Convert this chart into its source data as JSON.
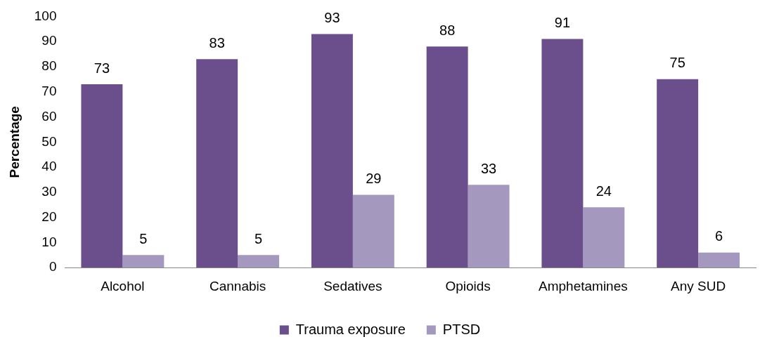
{
  "chart_data": {
    "type": "bar",
    "ylabel": "Percentage",
    "categories": [
      "Alcohol",
      "Cannabis",
      "Sedatives",
      "Opioids",
      "Amphetamines",
      "Any SUD"
    ],
    "series": [
      {
        "name": "Trauma exposure",
        "color": "#6b4f8c",
        "values": [
          73,
          83,
          93,
          88,
          91,
          75
        ]
      },
      {
        "name": "PTSD",
        "color": "#a598bf",
        "values": [
          5,
          5,
          29,
          33,
          24,
          6
        ]
      }
    ],
    "ylim": [
      0,
      100
    ],
    "yticks": [
      0,
      10,
      20,
      30,
      40,
      50,
      60,
      70,
      80,
      90,
      100
    ],
    "grid": false,
    "legend": "bottom",
    "data_labels": true
  }
}
